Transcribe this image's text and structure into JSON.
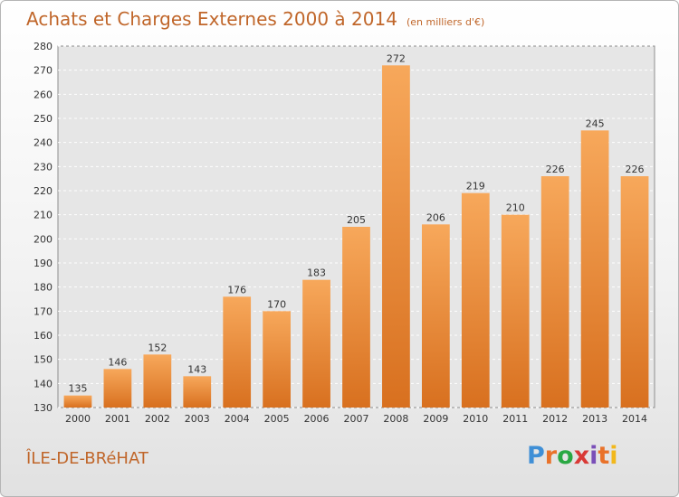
{
  "header": {
    "title": "Achats et Charges Externes 2000 à 2014",
    "subtitle": "(en milliers d'€)"
  },
  "footer": {
    "commune": "ÎLE-DE-BRéHAT",
    "logo_letters": [
      "P",
      "r",
      "o",
      "x",
      "i",
      "t",
      "i"
    ],
    "logo_colors": [
      "#3f8fd6",
      "#e9722a",
      "#2aa843",
      "#d93a36",
      "#7a4fb8",
      "#e9722a",
      "#f2b81c"
    ]
  },
  "chart_data": {
    "type": "bar",
    "title": "Achats et Charges Externes 2000 à 2014",
    "subtitle": "(en milliers d'€)",
    "xlabel": "",
    "ylabel": "",
    "categories": [
      "2000",
      "2001",
      "2002",
      "2003",
      "2004",
      "2005",
      "2006",
      "2007",
      "2008",
      "2009",
      "2010",
      "2011",
      "2012",
      "2013",
      "2014"
    ],
    "values": [
      135,
      146,
      152,
      143,
      176,
      170,
      183,
      205,
      272,
      206,
      219,
      210,
      226,
      245,
      226
    ],
    "ylim": [
      130,
      280
    ],
    "yticks": [
      130,
      140,
      150,
      160,
      170,
      180,
      190,
      200,
      210,
      220,
      230,
      240,
      250,
      260,
      270,
      280
    ],
    "grid": true,
    "bar_color_top": "#f7a85b",
    "bar_color_bottom": "#d8701f"
  }
}
